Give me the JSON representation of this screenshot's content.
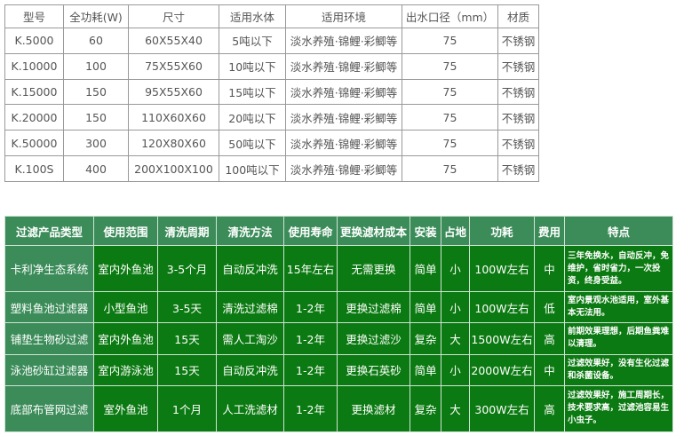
{
  "spec_table": {
    "headers": [
      "型号",
      "全功耗(W)",
      "尺寸",
      "适用水体",
      "适用环境",
      "出水口径（mm）",
      "材质"
    ],
    "rows": [
      [
        "K.5000",
        "60",
        "60X55X40",
        "5吨以下",
        "淡水养殖·锦鲤·彩鲫等",
        "75",
        "不锈钢"
      ],
      [
        "K.10000",
        "100",
        "75X55X60",
        "10吨以下",
        "淡水养殖·锦鲤·彩鲫等",
        "75",
        "不锈钢"
      ],
      [
        "K.15000",
        "150",
        "95X55X60",
        "15吨以下",
        "淡水养殖·锦鲤·彩鲫等",
        "75",
        "不锈钢"
      ],
      [
        "K.20000",
        "150",
        "110X60X60",
        "20吨以下",
        "淡水养殖·锦鲤·彩鲫等",
        "75",
        "不锈钢"
      ],
      [
        "K.50000",
        "300",
        "120X80X60",
        "50吨以下",
        "淡水养殖·锦鲤·彩鲫等",
        "75",
        "不锈钢"
      ],
      [
        "K.100S",
        "400",
        "200X100X100",
        "100吨以下",
        "淡水养殖·锦鲤·彩鲫等",
        "75",
        "不锈钢"
      ]
    ]
  },
  "compare_table": {
    "headers": [
      "过滤产品类型",
      "使用范围",
      "清洗周期",
      "清洗方法",
      "使用寿命",
      "更换滤材成本",
      "安装",
      "占地",
      "功耗",
      "费用",
      "特点"
    ],
    "rows": [
      [
        "卡利净生态系统",
        "室内外鱼池",
        "3-5个月",
        "自动反冲洗",
        "15年左右",
        "无需更换",
        "简单",
        "小",
        "100W左右",
        "中",
        "三年免换水，自动反冲，免维护，省时省力，一次投资，终身受益。"
      ],
      [
        "塑料鱼池过滤器",
        "小型鱼池",
        "3-5天",
        "清洗过滤棉",
        "1-2年",
        "更换过滤棉",
        "简单",
        "小",
        "100W左右",
        "低",
        "室内景观水池适用，室外基本无法用。"
      ],
      [
        "铺垫生物砂过滤",
        "室内外鱼池",
        "15天",
        "需人工淘沙",
        "1-2年",
        "更换过滤沙",
        "复杂",
        "大",
        "1500W左右",
        "高",
        "前期效果理想，后期鱼粪难以清理。"
      ],
      [
        "泳池砂缸过滤器",
        "室内游泳池",
        "15天",
        "自动反冲洗",
        "1-2年",
        "更换石英砂",
        "简单",
        "小",
        "2000W左右",
        "中",
        "过滤效果好，没有生化过滤和杀菌设备。"
      ],
      [
        "底部布管网过滤",
        "室外鱼池",
        "1个月",
        "人工洗滤材",
        "1-2年",
        "更换滤材",
        "复杂",
        "大",
        "300W左右",
        "高",
        "过滤效果好，施工周期长，技术要求高，过滤池容易生小虫子。"
      ]
    ]
  },
  "colors": {
    "header_green": "#3c8c5a",
    "body_green": "#0c7a12"
  }
}
